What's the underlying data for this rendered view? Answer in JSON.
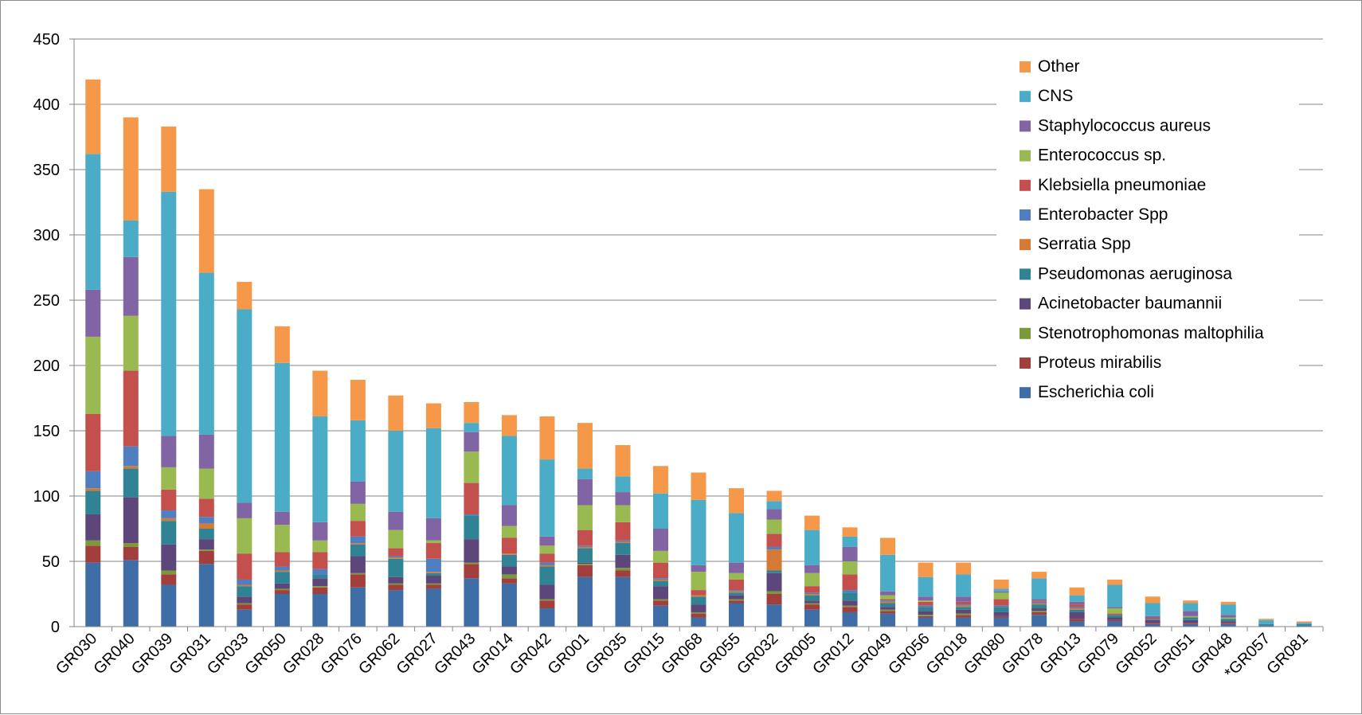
{
  "chart_data": {
    "type": "bar",
    "stacked": true,
    "title": "",
    "xlabel": "",
    "ylabel": "",
    "ylim": [
      0,
      450
    ],
    "yticks": [
      0,
      50,
      100,
      150,
      200,
      250,
      300,
      350,
      400,
      450
    ],
    "grid": "horizontal",
    "legend_position": "top-right",
    "categories": [
      "GR030",
      "GR040",
      "GR039",
      "GR031",
      "GR033",
      "GR050",
      "GR028",
      "GR076",
      "GR062",
      "GR027",
      "GR043",
      "GR014",
      "GR042",
      "GR001",
      "GR035",
      "GR015",
      "GR068",
      "GR055",
      "GR032",
      "GR005",
      "GR012",
      "GR049",
      "GR056",
      "GR018",
      "GR080",
      "GR078",
      "GR013",
      "GR079",
      "GR052",
      "GR051",
      "GR048",
      "*GR057",
      "GR081"
    ],
    "series": [
      {
        "name": "Escherichia coli",
        "color": "#3f6ea7",
        "values": [
          49,
          51,
          32,
          48,
          13,
          25,
          25,
          30,
          28,
          29,
          37,
          33,
          14,
          38,
          38,
          16,
          7,
          18,
          17,
          13,
          11,
          10,
          7,
          7,
          7,
          9,
          4,
          4,
          2,
          2,
          2,
          1,
          1
        ]
      },
      {
        "name": "Proteus mirabilis",
        "color": "#a23f3d",
        "values": [
          13,
          10,
          8,
          10,
          4,
          3,
          5,
          10,
          4,
          3,
          11,
          4,
          6,
          9,
          5,
          4,
          3,
          2,
          8,
          4,
          4,
          2,
          1,
          2,
          1,
          2,
          2,
          1,
          1,
          1,
          1,
          0,
          0
        ]
      },
      {
        "name": "Stenotrophomonas maltophilia",
        "color": "#7a9a3a",
        "values": [
          4,
          3,
          3,
          1,
          1,
          1,
          1,
          1,
          1,
          1,
          1,
          3,
          1,
          1,
          2,
          1,
          1,
          1,
          2,
          1,
          1,
          1,
          1,
          1,
          0,
          1,
          0,
          0,
          0,
          0,
          0,
          0,
          0
        ]
      },
      {
        "name": "Acinetobacter baumannii",
        "color": "#5c467a",
        "values": [
          20,
          35,
          20,
          8,
          5,
          4,
          6,
          13,
          5,
          6,
          18,
          6,
          11,
          1,
          10,
          10,
          6,
          3,
          14,
          2,
          4,
          2,
          3,
          3,
          3,
          2,
          5,
          2,
          2,
          2,
          1,
          0,
          0
        ]
      },
      {
        "name": "Pseudomonas aeruginosa",
        "color": "#2f8394",
        "values": [
          18,
          22,
          18,
          8,
          8,
          9,
          3,
          9,
          14,
          2,
          18,
          9,
          14,
          11,
          9,
          4,
          6,
          2,
          2,
          4,
          6,
          3,
          3,
          2,
          4,
          3,
          2,
          2,
          1,
          2,
          2,
          1,
          1
        ]
      },
      {
        "name": "Serratia Spp",
        "color": "#d27a36",
        "values": [
          2,
          2,
          2,
          4,
          1,
          1,
          0,
          1,
          1,
          1,
          0,
          1,
          1,
          1,
          1,
          1,
          1,
          1,
          16,
          1,
          0,
          1,
          0,
          1,
          0,
          1,
          1,
          0,
          0,
          0,
          0,
          0,
          0
        ]
      },
      {
        "name": "Enterobacter Spp",
        "color": "#4f7fc1",
        "values": [
          13,
          15,
          6,
          5,
          4,
          3,
          4,
          5,
          1,
          10,
          1,
          0,
          2,
          1,
          1,
          1,
          0,
          1,
          2,
          1,
          2,
          1,
          1,
          1,
          1,
          1,
          1,
          0,
          0,
          0,
          0,
          0,
          0
        ]
      },
      {
        "name": "Klebsiella pneumoniae",
        "color": "#c3504c",
        "values": [
          44,
          58,
          16,
          14,
          20,
          11,
          13,
          12,
          6,
          12,
          24,
          12,
          7,
          12,
          14,
          12,
          4,
          8,
          10,
          5,
          12,
          1,
          3,
          2,
          5,
          1,
          2,
          1,
          1,
          0,
          0,
          0,
          0
        ]
      },
      {
        "name": "Enterococcus sp.",
        "color": "#98ba50",
        "values": [
          59,
          42,
          17,
          23,
          27,
          21,
          9,
          13,
          14,
          2,
          24,
          9,
          6,
          19,
          13,
          9,
          14,
          5,
          11,
          10,
          10,
          3,
          1,
          0,
          5,
          0,
          0,
          4,
          0,
          1,
          1,
          0,
          0
        ]
      },
      {
        "name": "Staphylococcus aureus",
        "color": "#8164a3",
        "values": [
          36,
          45,
          24,
          26,
          12,
          10,
          14,
          17,
          14,
          17,
          15,
          16,
          7,
          20,
          10,
          17,
          5,
          8,
          8,
          6,
          11,
          3,
          3,
          4,
          1,
          1,
          2,
          1,
          1,
          4,
          2,
          0,
          0
        ]
      },
      {
        "name": "CNS",
        "color": "#4bacc7",
        "values": [
          104,
          28,
          187,
          124,
          148,
          114,
          81,
          47,
          62,
          69,
          7,
          53,
          59,
          8,
          12,
          27,
          50,
          38,
          6,
          27,
          8,
          28,
          15,
          17,
          2,
          16,
          5,
          17,
          10,
          6,
          8,
          3,
          1
        ]
      },
      {
        "name": "Other",
        "color": "#f5984a",
        "values": [
          57,
          79,
          50,
          64,
          21,
          28,
          35,
          31,
          27,
          19,
          16,
          16,
          33,
          35,
          24,
          21,
          21,
          19,
          8,
          11,
          7,
          13,
          11,
          9,
          7,
          5,
          6,
          4,
          5,
          2,
          2,
          1,
          1
        ]
      }
    ]
  }
}
